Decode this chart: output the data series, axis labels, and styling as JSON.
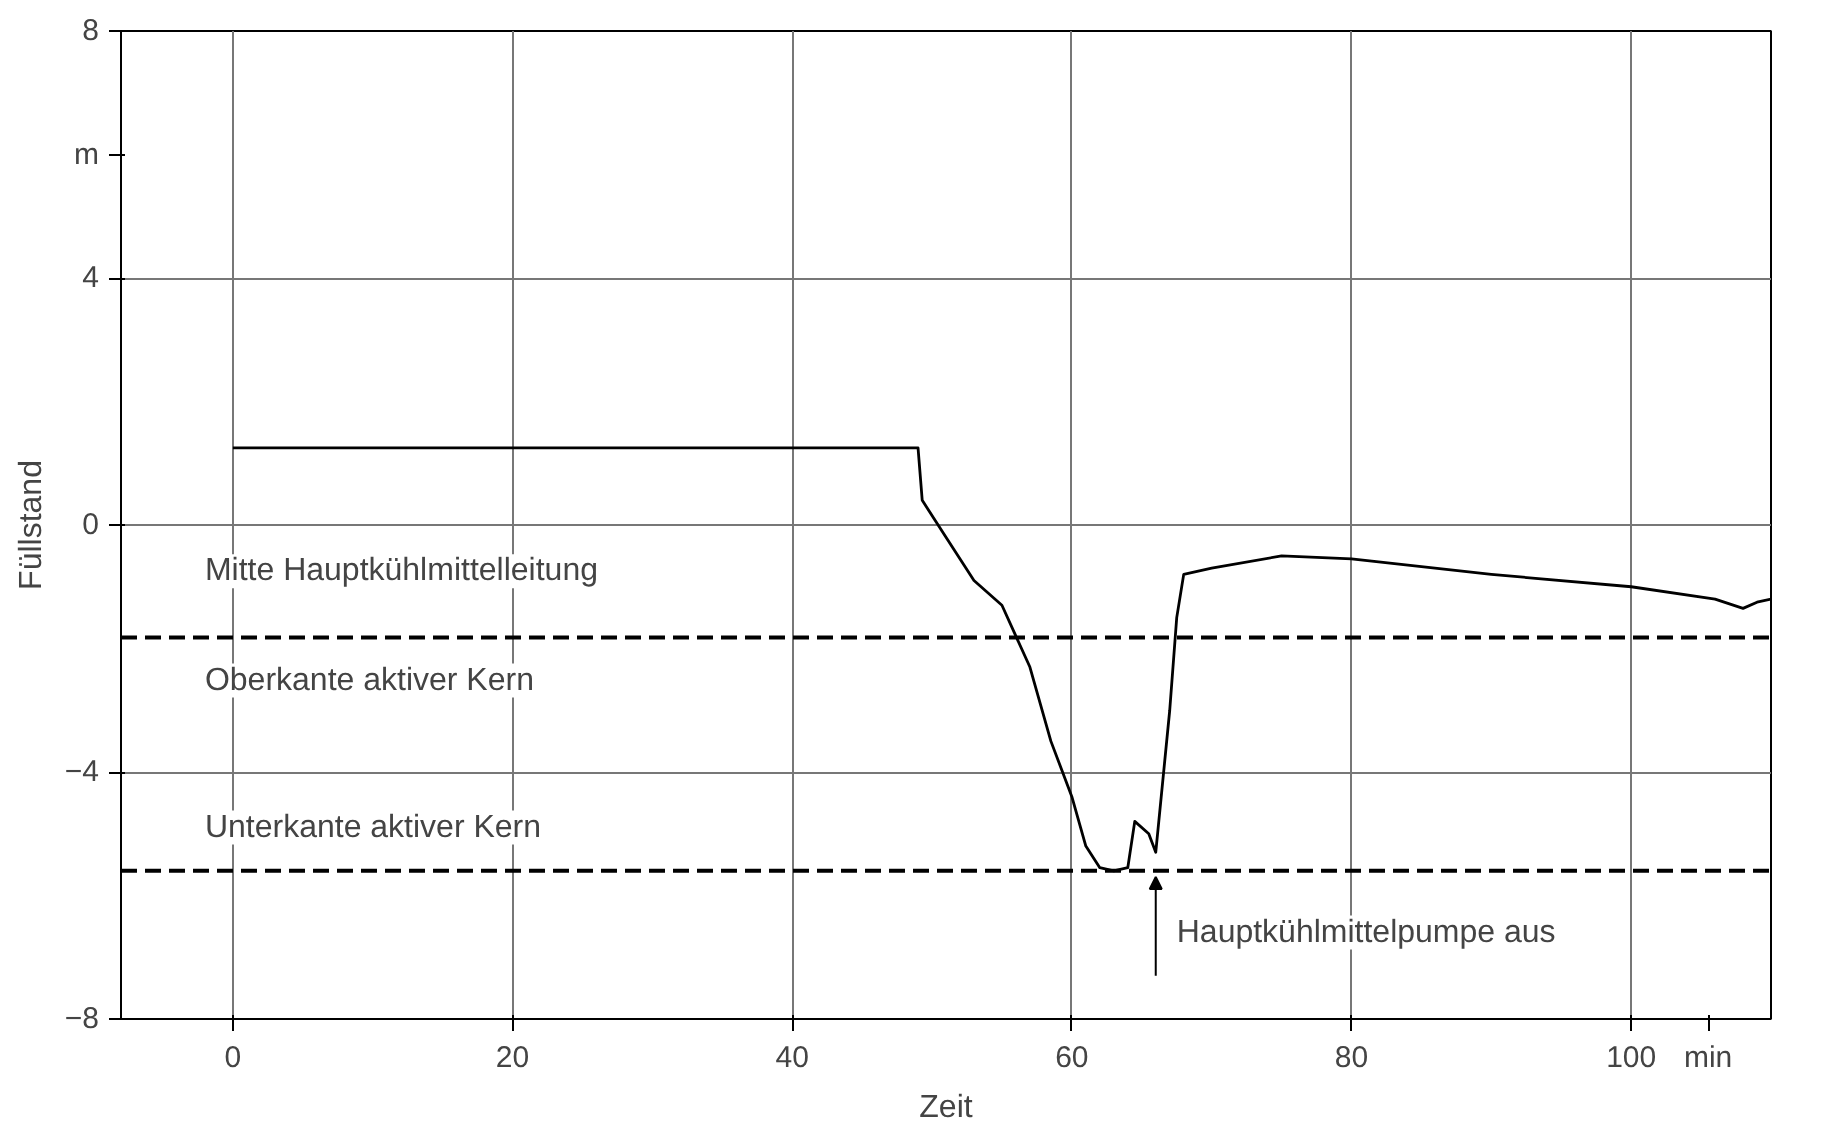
{
  "chart_data": {
    "type": "line",
    "xlabel": "Zeit",
    "ylabel": "Füllstand",
    "x": [
      0,
      49,
      49.3,
      51,
      53,
      55,
      57,
      58.5,
      60,
      61,
      62,
      63,
      64,
      64.5,
      65.5,
      66,
      67,
      67.5,
      68,
      70,
      75,
      80,
      90,
      100,
      106,
      108,
      109,
      110
    ],
    "series": [
      {
        "color": "#000000",
        "values": [
          1.25,
          1.25,
          0.4,
          -0.2,
          -0.9,
          -1.3,
          -2.3,
          -3.5,
          -4.4,
          -5.2,
          -5.55,
          -5.6,
          -5.55,
          -4.8,
          -5.0,
          -5.3,
          -3.0,
          -1.5,
          -0.8,
          -0.7,
          -0.5,
          -0.55,
          -0.8,
          -1.0,
          -1.2,
          -1.35,
          -1.25,
          -1.2
        ]
      }
    ],
    "xlim": [
      -8,
      110
    ],
    "xticks": [
      0,
      20,
      40,
      60,
      80,
      100,
      {
        "value": 105.5,
        "label": "min"
      }
    ],
    "ylim": [
      -8,
      8
    ],
    "yticks": [
      -8,
      -4,
      0,
      4,
      {
        "value": 6,
        "label": "m"
      },
      8
    ],
    "grid": true,
    "marker": "none",
    "line_style": "solid",
    "ref_lines": [
      {
        "axis": "y",
        "value": -1.82,
        "label": "Oberkante aktiver Kern",
        "line_style": "dashed",
        "color": "#000000"
      },
      {
        "axis": "y",
        "value": -5.6,
        "label": "Unterkante aktiver Kern",
        "line_style": "dashed",
        "color": "#000000"
      }
    ],
    "annotations": [
      "Mitte Hauptkühlmittelleitung",
      {
        "text": "Hauptkühlmittelpumpe aus",
        "x": 66,
        "y": -5.5
      }
    ]
  }
}
